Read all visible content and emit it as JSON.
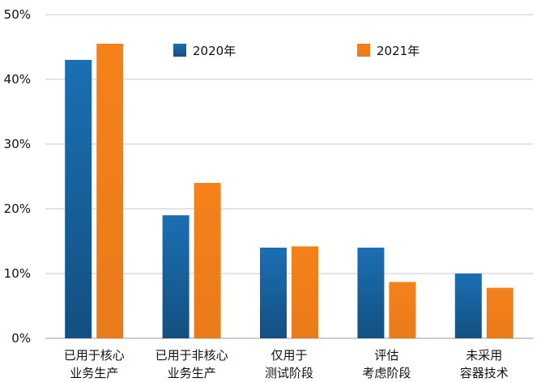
{
  "chart_data": {
    "type": "bar",
    "categories": [
      [
        "已用于核心",
        "业务生产"
      ],
      [
        "已用于非核心",
        "业务生产"
      ],
      [
        "仅用于",
        "测试阶段"
      ],
      [
        "评估",
        "考虑阶段"
      ],
      [
        "未采用",
        "容器技术"
      ]
    ],
    "series": [
      {
        "name": "2020年",
        "values": [
          43,
          19,
          14,
          14,
          10
        ],
        "color": "#1b6fb3"
      },
      {
        "name": "2021年",
        "values": [
          45.5,
          24,
          14.2,
          8.7,
          7.8
        ],
        "color": "#f5811a"
      }
    ],
    "ylim": [
      0,
      50
    ],
    "yticks": [
      0,
      10,
      20,
      30,
      40,
      50
    ],
    "ytick_labels": [
      "0%",
      "10%",
      "20%",
      "30%",
      "40%",
      "50%"
    ],
    "grid": true,
    "legend_position": "top"
  }
}
